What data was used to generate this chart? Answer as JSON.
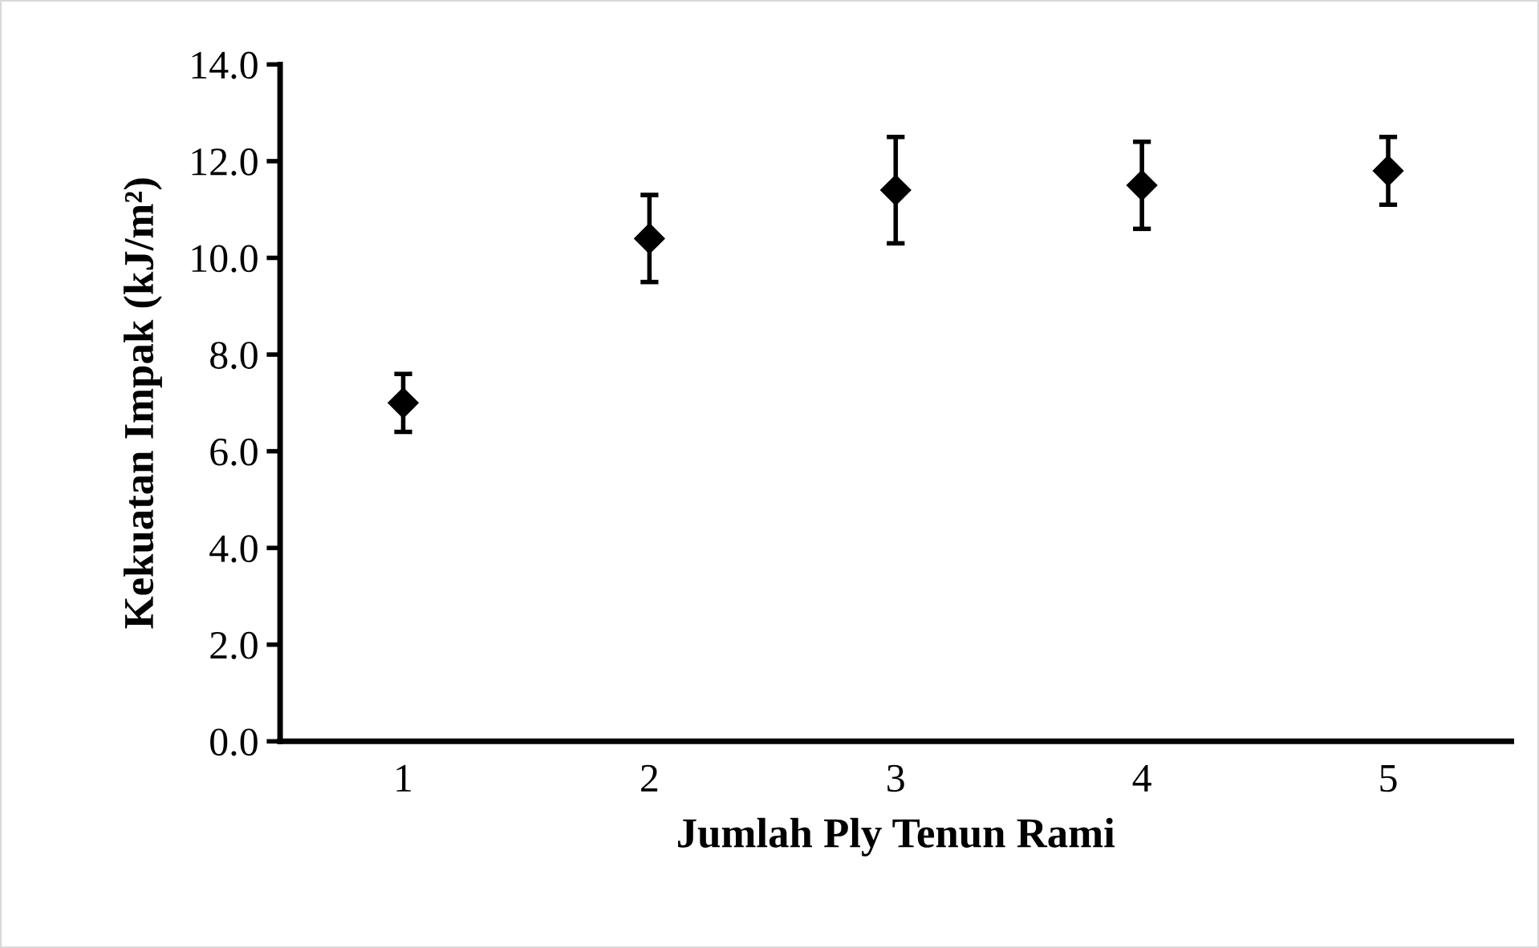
{
  "chart_data": {
    "type": "scatter",
    "xlabel": "Jumlah Ply Tenun Rami",
    "ylabel": "Kekuatan Impak (kJ/m²)",
    "categories": [
      "1",
      "2",
      "3",
      "4",
      "5"
    ],
    "series": [
      {
        "color": "#000000",
        "values": [
          7.0,
          10.4,
          11.4,
          11.5,
          11.8
        ],
        "errors": [
          0.6,
          0.9,
          1.1,
          0.9,
          0.7
        ]
      }
    ],
    "ylim": [
      0,
      14
    ],
    "yticks": [
      {
        "value": 0,
        "label": "0.0"
      },
      {
        "value": 2,
        "label": "2.0"
      },
      {
        "value": 4,
        "label": "4.0"
      },
      {
        "value": 6,
        "label": "6.0"
      },
      {
        "value": 8,
        "label": "8.0"
      },
      {
        "value": 10,
        "label": "10.0"
      },
      {
        "value": 12,
        "label": "12.0"
      },
      {
        "value": 14,
        "label": "14.0"
      }
    ],
    "grid": false,
    "legend": false,
    "marker": "diamond"
  }
}
